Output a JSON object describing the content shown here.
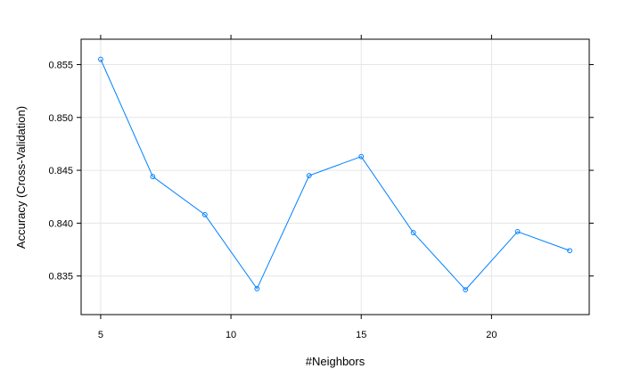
{
  "chart_data": {
    "type": "line",
    "xlabel": "#Neighbors",
    "ylabel": "Accuracy (Cross-Validation)",
    "xlim": [
      4.25,
      23.75
    ],
    "ylim": [
      0.83135,
      0.8574
    ],
    "x_ticks": [
      5,
      10,
      15,
      20
    ],
    "x_tick_labels": [
      "5",
      "10",
      "15",
      "20"
    ],
    "y_ticks": [
      0.835,
      0.84,
      0.845,
      0.85,
      0.855
    ],
    "y_tick_labels": [
      "0.835",
      "0.840",
      "0.845",
      "0.850",
      "0.855"
    ],
    "grid": true,
    "series": [
      {
        "color": "#0080ff",
        "marker": "circle",
        "x": [
          5,
          7,
          9,
          11,
          13,
          15,
          17,
          19,
          21,
          23
        ],
        "y": [
          0.8555,
          0.8444,
          0.8408,
          0.8338,
          0.8445,
          0.8463,
          0.8391,
          0.8337,
          0.8392,
          0.8374
        ]
      }
    ]
  }
}
